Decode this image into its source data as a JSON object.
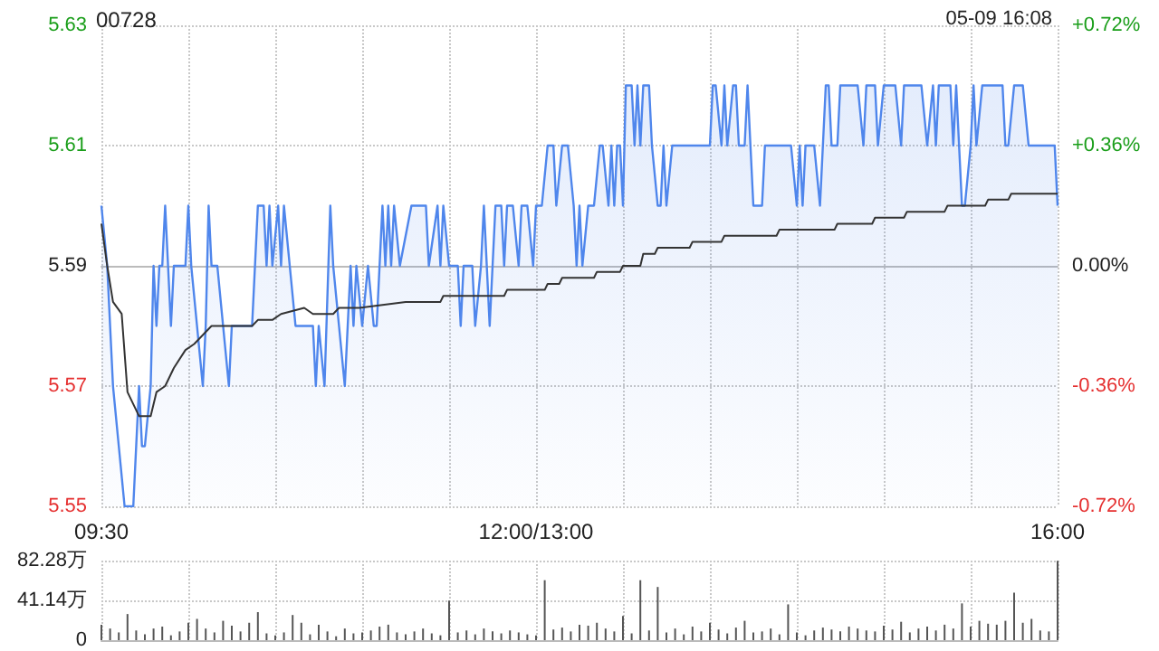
{
  "chart_data": [
    {
      "type": "line",
      "title": "00728",
      "subtitle": "05-09 16:08",
      "categories": [
        "09:30",
        null,
        null,
        null,
        null,
        null,
        null,
        null,
        null,
        null,
        null,
        null,
        null,
        null,
        null,
        null,
        null,
        null,
        null,
        null,
        null,
        null,
        null,
        null,
        null,
        null,
        null,
        null,
        null,
        null,
        null,
        null,
        null,
        null,
        null,
        null,
        null,
        null,
        null,
        null,
        null,
        null,
        null,
        null,
        null,
        null,
        null,
        null,
        null,
        null,
        null,
        null,
        null,
        null,
        null,
        null,
        null,
        null,
        null,
        null,
        null,
        null,
        null,
        null,
        null,
        null,
        null,
        null,
        null,
        null,
        null,
        null,
        null,
        null,
        null,
        null,
        null,
        null,
        null,
        null,
        null,
        null,
        null,
        null,
        null,
        null,
        null,
        null,
        null,
        null,
        null,
        null,
        null,
        null,
        null,
        null,
        null,
        null,
        null,
        null,
        null,
        null,
        null,
        null,
        null,
        null,
        null,
        null,
        null,
        null,
        null,
        null,
        null,
        null,
        null,
        null,
        null,
        null,
        null,
        null,
        null,
        null,
        null,
        null,
        null,
        null,
        null,
        null,
        null,
        null,
        null,
        null,
        null,
        null,
        null,
        null,
        null,
        null,
        null,
        null,
        null,
        null,
        null,
        null,
        null,
        null,
        null,
        null,
        null,
        null,
        "12:00/13:00",
        null,
        null,
        null,
        null,
        null,
        null,
        null,
        null,
        null,
        null,
        null,
        null,
        null,
        null,
        null,
        null,
        null,
        null,
        null,
        null,
        null,
        null,
        null,
        null,
        null,
        null,
        null,
        null,
        null,
        null,
        null,
        null,
        null,
        null,
        null,
        null,
        null,
        null,
        null,
        null,
        null,
        null,
        null,
        null,
        null,
        null,
        null,
        null,
        null,
        null,
        null,
        null,
        null,
        null,
        null,
        null,
        null,
        null,
        null,
        null,
        null,
        null,
        null,
        null,
        null,
        null,
        null,
        null,
        null,
        null,
        null,
        null,
        null,
        null,
        null,
        null,
        null,
        null,
        null,
        null,
        null,
        null,
        null,
        null,
        null,
        null,
        null,
        null,
        null,
        null,
        null,
        null,
        null,
        null,
        null,
        null,
        null,
        null,
        null,
        null,
        null,
        null,
        null,
        null,
        null,
        null,
        null,
        null,
        null,
        null,
        null,
        null,
        null,
        null,
        null,
        null,
        null,
        null,
        null,
        null,
        null,
        null,
        null,
        null,
        null,
        null,
        null,
        null,
        null,
        null,
        null,
        null,
        null,
        null,
        null,
        null,
        null,
        null,
        null,
        null,
        null,
        null,
        null,
        null,
        null,
        null,
        null,
        null,
        null,
        null,
        null,
        null,
        null,
        null,
        null,
        null,
        null,
        null,
        null,
        null,
        null,
        null,
        null,
        null,
        null,
        null,
        null,
        null,
        null,
        null,
        null,
        null,
        null,
        null,
        null,
        null,
        null,
        null,
        null,
        "16:00"
      ],
      "ylim": [
        5.55,
        5.63
      ],
      "yticks": [
        5.55,
        5.57,
        5.59,
        5.61,
        5.63
      ],
      "y2lim": [
        -0.72,
        0.72
      ],
      "y2ticks": [
        {
          "value": -0.72,
          "label": "-0.72%"
        },
        {
          "value": -0.36,
          "label": "-0.36%"
        },
        {
          "value": 0,
          "label": "0.00%"
        },
        {
          "value": 0.36,
          "label": "+0.36%"
        },
        {
          "value": 0.72,
          "label": "+0.72%"
        }
      ],
      "grid": true,
      "series": [
        {
          "type": "area",
          "color": "#4f86ec",
          "values": [
            5.6,
            null,
            5.59,
            null,
            5.57,
            null,
            5.56,
            null,
            5.55,
            null,
            null,
            5.55,
            null,
            5.57,
            5.56,
            5.56,
            null,
            5.57,
            5.59,
            5.58,
            5.59,
            5.59,
            5.6,
            null,
            5.58,
            5.59,
            null,
            null,
            null,
            5.59,
            5.6,
            5.59,
            null,
            5.58,
            null,
            5.57,
            5.58,
            5.6,
            5.59,
            null,
            5.59,
            null,
            5.58,
            null,
            5.57,
            5.58,
            null,
            null,
            null,
            null,
            null,
            null,
            5.58,
            null,
            5.6,
            null,
            5.6,
            5.59,
            5.6,
            5.59,
            null,
            5.6,
            5.59,
            5.6,
            null,
            5.59,
            null,
            5.58,
            null,
            null,
            null,
            null,
            null,
            5.58,
            5.57,
            5.58,
            null,
            5.57,
            null,
            5.6,
            5.59,
            null,
            5.58,
            null,
            5.57,
            null,
            5.59,
            5.58,
            5.59,
            null,
            5.58,
            null,
            5.59,
            null,
            5.58,
            5.58,
            null,
            5.6,
            5.59,
            5.6,
            5.59,
            5.6,
            null,
            5.59,
            null,
            null,
            null,
            5.6,
            null,
            null,
            null,
            null,
            5.6,
            5.59,
            null,
            null,
            5.6,
            5.59,
            5.6,
            null,
            5.59,
            null,
            null,
            5.59,
            5.58,
            5.59,
            null,
            null,
            5.59,
            5.58,
            null,
            5.59,
            5.6,
            null,
            5.58,
            null,
            5.6,
            null,
            5.6,
            5.59,
            5.6,
            null,
            5.6,
            null,
            5.59,
            5.6,
            null,
            5.6,
            null,
            5.59,
            5.6,
            null,
            5.6,
            null,
            5.61,
            null,
            5.61,
            5.6,
            null,
            5.61,
            null,
            5.61,
            null,
            5.6,
            5.59,
            5.6,
            5.59,
            null,
            5.6,
            null,
            5.6,
            null,
            5.61,
            5.61,
            null,
            5.6,
            5.61,
            5.6,
            5.61,
            5.61,
            5.6,
            5.62,
            null,
            5.62,
            5.61,
            5.62,
            5.61,
            5.62,
            null,
            5.62,
            5.61,
            null,
            5.6,
            5.6,
            5.61,
            5.6,
            null,
            5.61,
            null,
            null,
            null,
            null,
            null,
            null,
            null,
            null,
            null,
            null,
            null,
            null,
            5.61,
            5.62,
            5.62,
            null,
            5.61,
            5.62,
            5.61,
            null,
            5.62,
            5.62,
            5.61,
            null,
            5.61,
            5.62,
            5.61,
            5.6,
            null,
            null,
            5.6,
            5.61,
            null,
            null,
            null,
            null,
            null,
            null,
            null,
            null,
            5.61,
            null,
            5.6,
            5.61,
            5.6,
            5.61,
            null,
            null,
            5.61,
            null,
            5.6,
            5.61,
            5.62,
            5.62,
            5.61,
            null,
            5.61,
            5.62,
            null,
            null,
            null,
            null,
            null,
            5.62,
            null,
            5.61,
            5.62,
            null,
            null,
            5.62,
            5.61,
            null,
            5.62,
            null,
            null,
            null,
            5.62,
            null,
            5.61,
            5.62,
            null,
            null,
            null,
            null,
            null,
            5.62,
            null,
            5.61,
            null,
            5.62,
            5.61,
            5.62,
            null,
            null,
            null,
            5.62,
            5.61,
            5.62,
            5.61,
            5.6,
            5.6,
            null,
            5.61,
            5.62,
            5.61,
            null,
            5.62,
            null,
            null,
            null,
            null,
            null,
            null,
            5.62,
            5.61,
            5.61,
            null,
            5.62,
            null,
            null,
            5.62,
            null,
            5.61,
            null,
            null,
            null,
            null,
            null,
            null,
            null,
            null,
            5.61,
            5.6
          ]
        },
        {
          "color": "#333333",
          "values": [
            5.597,
            null,
            5.59,
            null,
            5.584,
            null,
            null,
            5.582,
            null,
            5.569,
            null,
            null,
            5.566,
            5.565,
            null,
            null,
            null,
            5.565,
            null,
            5.569,
            null,
            null,
            5.57,
            null,
            null,
            5.573,
            null,
            null,
            null,
            5.576,
            null,
            null,
            5.577,
            null,
            null,
            null,
            null,
            null,
            5.58,
            null,
            null,
            null,
            null,
            null,
            null,
            null,
            null,
            null,
            null,
            null,
            null,
            null,
            5.58,
            null,
            5.581,
            null,
            null,
            null,
            null,
            5.581,
            null,
            null,
            5.582,
            null,
            null,
            null,
            null,
            null,
            null,
            null,
            5.583,
            null,
            null,
            5.582,
            null,
            null,
            null,
            null,
            null,
            null,
            5.582,
            null,
            5.583,
            null,
            null,
            null,
            null,
            null,
            null,
            5.583,
            null,
            null,
            null,
            null,
            null,
            null,
            null,
            null,
            null,
            null,
            null,
            null,
            null,
            null,
            null,
            5.584,
            null,
            null,
            null,
            null,
            null,
            null,
            null,
            null,
            null,
            null,
            null,
            5.584,
            5.585,
            null,
            null,
            null,
            null,
            null,
            null,
            null,
            null,
            null,
            null,
            null,
            null,
            null,
            null,
            null,
            null,
            null,
            null,
            null,
            null,
            5.585,
            5.586,
            null,
            null,
            null,
            null,
            null,
            null,
            null,
            null,
            null,
            null,
            null,
            null,
            5.586,
            5.587,
            null,
            null,
            null,
            5.587,
            5.588,
            null,
            null,
            null,
            null,
            null,
            null,
            null,
            null,
            null,
            null,
            5.588,
            5.589,
            null,
            null,
            null,
            null,
            null,
            null,
            null,
            5.589,
            5.59,
            null,
            null,
            null,
            null,
            null,
            5.59,
            5.592,
            null,
            null,
            null,
            5.592,
            5.593,
            null,
            null,
            null,
            null,
            null,
            null,
            null,
            null,
            null,
            null,
            5.593,
            5.594,
            null,
            null,
            null,
            null,
            null,
            null,
            null,
            null,
            null,
            5.594,
            5.595,
            null,
            null,
            null,
            null,
            null,
            null,
            null,
            null,
            null,
            null,
            null,
            null,
            null,
            null,
            null,
            null,
            null,
            5.595,
            5.596,
            null,
            null,
            null,
            null,
            null,
            null,
            null,
            null,
            null,
            null,
            null,
            null,
            null,
            null,
            null,
            null,
            null,
            null,
            5.596,
            5.597,
            null,
            null,
            null,
            null,
            null,
            null,
            null,
            null,
            null,
            null,
            null,
            5.597,
            5.598,
            null,
            null,
            null,
            null,
            null,
            null,
            null,
            null,
            null,
            5.598,
            5.599,
            null,
            null,
            null,
            null,
            null,
            null,
            null,
            null,
            null,
            null,
            null,
            null,
            5.599,
            5.6,
            null,
            null,
            null,
            null,
            null,
            null,
            null,
            null,
            null,
            null,
            null,
            null,
            5.6,
            5.601,
            null,
            null,
            null,
            null,
            null,
            null,
            5.601,
            5.602,
            null,
            null,
            null,
            null,
            null,
            null,
            null,
            null,
            null,
            null,
            null,
            null,
            null,
            null,
            null,
            5.602
          ]
        }
      ]
    },
    {
      "type": "bar",
      "tick_labels": "y",
      "categories": [
        null,
        null,
        null,
        null,
        null,
        null,
        null,
        null,
        null,
        null,
        null,
        null,
        null,
        null,
        null,
        null,
        null,
        null,
        null,
        null,
        null,
        null,
        null,
        null,
        null,
        null,
        null,
        null,
        null,
        null,
        null,
        null,
        null,
        null,
        null,
        null,
        null,
        null,
        null,
        null,
        null,
        null,
        null,
        null,
        null,
        null,
        null,
        null,
        null,
        null,
        null,
        null,
        null,
        null,
        null,
        null,
        null,
        null,
        null,
        null,
        null,
        null,
        null,
        null,
        null,
        null,
        null,
        null,
        null,
        null,
        null,
        null,
        null,
        null,
        null,
        null,
        null,
        null,
        null,
        null,
        null,
        null,
        null,
        null,
        null,
        null,
        null,
        null,
        null,
        null,
        null,
        null,
        null,
        null,
        null,
        null,
        null,
        null,
        null,
        null,
        null,
        null,
        null,
        null,
        null,
        null,
        null,
        null,
        null,
        null,
        null,
        null,
        null,
        null,
        null,
        null,
        null,
        null,
        null,
        null,
        null,
        null,
        null,
        null,
        null,
        null,
        null,
        null,
        null,
        null,
        null,
        null,
        null,
        null,
        null,
        null,
        null,
        null,
        null,
        null,
        null,
        null,
        null,
        null,
        null,
        null,
        null,
        null,
        null,
        null,
        null,
        null,
        null,
        null,
        null,
        null,
        null,
        null,
        null,
        null,
        null,
        null,
        null,
        null,
        null,
        null,
        null,
        null,
        null,
        null,
        null,
        null,
        null,
        null,
        null,
        null,
        null,
        null,
        null,
        null,
        null,
        null,
        null,
        null,
        null,
        null,
        null,
        null,
        null,
        null,
        null,
        null,
        null,
        null,
        null,
        null,
        null,
        null,
        null,
        null,
        null,
        null,
        null,
        null,
        null,
        null,
        null,
        null,
        null,
        null,
        null,
        null,
        null,
        null,
        null,
        null,
        null,
        null,
        null,
        null,
        null,
        null,
        null,
        null,
        null,
        null,
        null,
        null,
        null,
        null,
        null,
        null,
        null,
        null,
        null,
        null,
        null,
        null,
        null,
        null,
        null,
        null,
        null,
        null,
        null,
        null,
        null,
        null,
        null,
        null,
        null,
        null,
        null,
        null,
        null,
        null,
        null,
        null,
        null,
        null,
        null,
        null,
        null,
        null,
        null,
        null,
        null,
        null,
        null,
        null,
        null,
        null,
        null,
        null,
        null,
        null,
        null,
        null,
        null,
        null,
        null,
        null,
        null,
        null,
        null,
        null,
        null,
        null,
        null,
        null,
        null,
        null,
        null,
        null,
        null,
        null,
        null,
        null,
        null,
        null,
        null,
        null,
        null,
        null,
        null,
        null,
        null,
        null,
        null,
        null,
        null,
        null,
        null,
        null,
        null,
        null,
        null,
        null,
        null,
        null,
        null,
        null,
        null,
        null,
        null,
        null,
        null,
        null,
        null,
        null,
        null
      ],
      "ylim": [
        0,
        82.28
      ],
      "yticks": [
        {
          "value": 0,
          "label": "0"
        },
        {
          "value": 41.14,
          "label": "41.14万"
        },
        {
          "value": 82.28,
          "label": "82.28万"
        }
      ],
      "grid": true,
      "series": [
        {
          "color": "#555555",
          "values": [
            16,
            null,
            null,
            12,
            null,
            null,
            8,
            null,
            null,
            27,
            null,
            null,
            10,
            null,
            null,
            6,
            null,
            null,
            12,
            null,
            null,
            14,
            null,
            null,
            5,
            null,
            null,
            9,
            null,
            null,
            18,
            null,
            null,
            22,
            null,
            null,
            12,
            null,
            null,
            8,
            null,
            null,
            20,
            null,
            null,
            15,
            null,
            null,
            9,
            null,
            null,
            18,
            null,
            null,
            29,
            null,
            null,
            7,
            null,
            null,
            5,
            null,
            null,
            8,
            null,
            null,
            26,
            null,
            null,
            18,
            null,
            null,
            6,
            null,
            null,
            16,
            null,
            null,
            9,
            null,
            null,
            4,
            null,
            null,
            12,
            null,
            null,
            7,
            null,
            null,
            8,
            null,
            null,
            10,
            null,
            null,
            14,
            null,
            null,
            16,
            null,
            null,
            8,
            null,
            null,
            6,
            null,
            null,
            9,
            null,
            null,
            12,
            null,
            null,
            7,
            null,
            null,
            5,
            null,
            null,
            41,
            null,
            null,
            8,
            null,
            null,
            10,
            null,
            null,
            6,
            null,
            null,
            12,
            null,
            null,
            9,
            null,
            null,
            7,
            null,
            null,
            10,
            null,
            null,
            8,
            null,
            null,
            6,
            null,
            null,
            5,
            null,
            null,
            62,
            null,
            null,
            11,
            null,
            null,
            13,
            null,
            null,
            9,
            null,
            null,
            16,
            null,
            null,
            15,
            null,
            null,
            18,
            null,
            null,
            12,
            null,
            null,
            9,
            null,
            null,
            25,
            null,
            null,
            7,
            null,
            null,
            62,
            null,
            null,
            10,
            null,
            null,
            55,
            null,
            null,
            8,
            null,
            null,
            12,
            null,
            null,
            6,
            null,
            null,
            14,
            null,
            null,
            9,
            null,
            null,
            18,
            null,
            null,
            11,
            null,
            null,
            7,
            null,
            null,
            13,
            null,
            null,
            20,
            null,
            null,
            8,
            null,
            null,
            9,
            null,
            null,
            12,
            null,
            null,
            6,
            null,
            null,
            37,
            null,
            null,
            8,
            null,
            null,
            5,
            null,
            null,
            10,
            null,
            null,
            13,
            null,
            null,
            11,
            null,
            null,
            9,
            null,
            null,
            14,
            null,
            null,
            12,
            null,
            null,
            10,
            null,
            null,
            9,
            null,
            null,
            15,
            null,
            null,
            11,
            null,
            null,
            19,
            null,
            null,
            8,
            null,
            null,
            12,
            null,
            null,
            14,
            null,
            null,
            10,
            null,
            null,
            16,
            null,
            null,
            12,
            null,
            null,
            38,
            null,
            null,
            14,
            null,
            null,
            20,
            null,
            null,
            17,
            null,
            null,
            16,
            null,
            null,
            20,
            null,
            null,
            49,
            null,
            null,
            18,
            null,
            null,
            22,
            null,
            null,
            10,
            null,
            null,
            9,
            null,
            null,
            82
          ]
        }
      ]
    }
  ]
}
